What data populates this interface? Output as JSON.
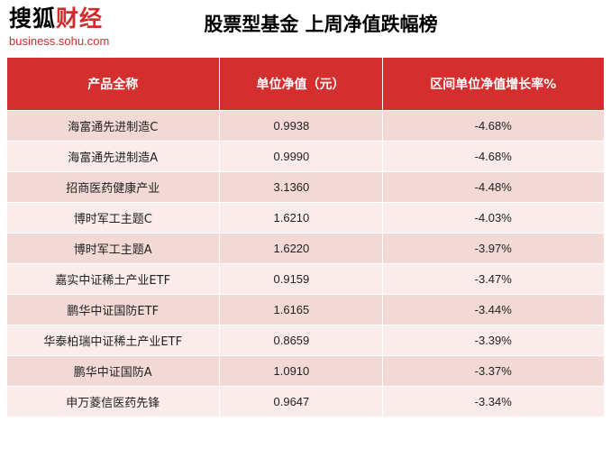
{
  "logo": {
    "text_a": "搜狐",
    "text_b": "财经",
    "subtitle": "business.sohu.com"
  },
  "title": "股票型基金 上周净值跌幅榜",
  "table": {
    "headers": [
      "产品全称",
      "单位净值（元）",
      "区间单位净值增长率%"
    ],
    "rows": [
      {
        "name": "海富通先进制造C",
        "nav": "0.9938",
        "change": "-4.68%"
      },
      {
        "name": "海富通先进制造A",
        "nav": "0.9990",
        "change": "-4.68%"
      },
      {
        "name": "招商医药健康产业",
        "nav": "3.1360",
        "change": "-4.48%"
      },
      {
        "name": "博时军工主题C",
        "nav": "1.6210",
        "change": "-4.03%"
      },
      {
        "name": "博时军工主题A",
        "nav": "1.6220",
        "change": "-3.97%"
      },
      {
        "name": "嘉实中证稀土产业ETF",
        "nav": "0.9159",
        "change": "-3.47%"
      },
      {
        "name": "鹏华中证国防ETF",
        "nav": "1.6165",
        "change": "-3.44%"
      },
      {
        "name": "华泰柏瑞中证稀土产业ETF",
        "nav": "0.8659",
        "change": "-3.39%"
      },
      {
        "name": "鹏华中证国防A",
        "nav": "1.0910",
        "change": "-3.37%"
      },
      {
        "name": "申万菱信医药先锋",
        "nav": "0.9647",
        "change": "-3.34%"
      }
    ]
  },
  "colors": {
    "header_bg": "#d32f2f",
    "row_odd": "#f2d9d6",
    "row_even": "#f9eceb",
    "brand_red": "#d32b2b"
  }
}
